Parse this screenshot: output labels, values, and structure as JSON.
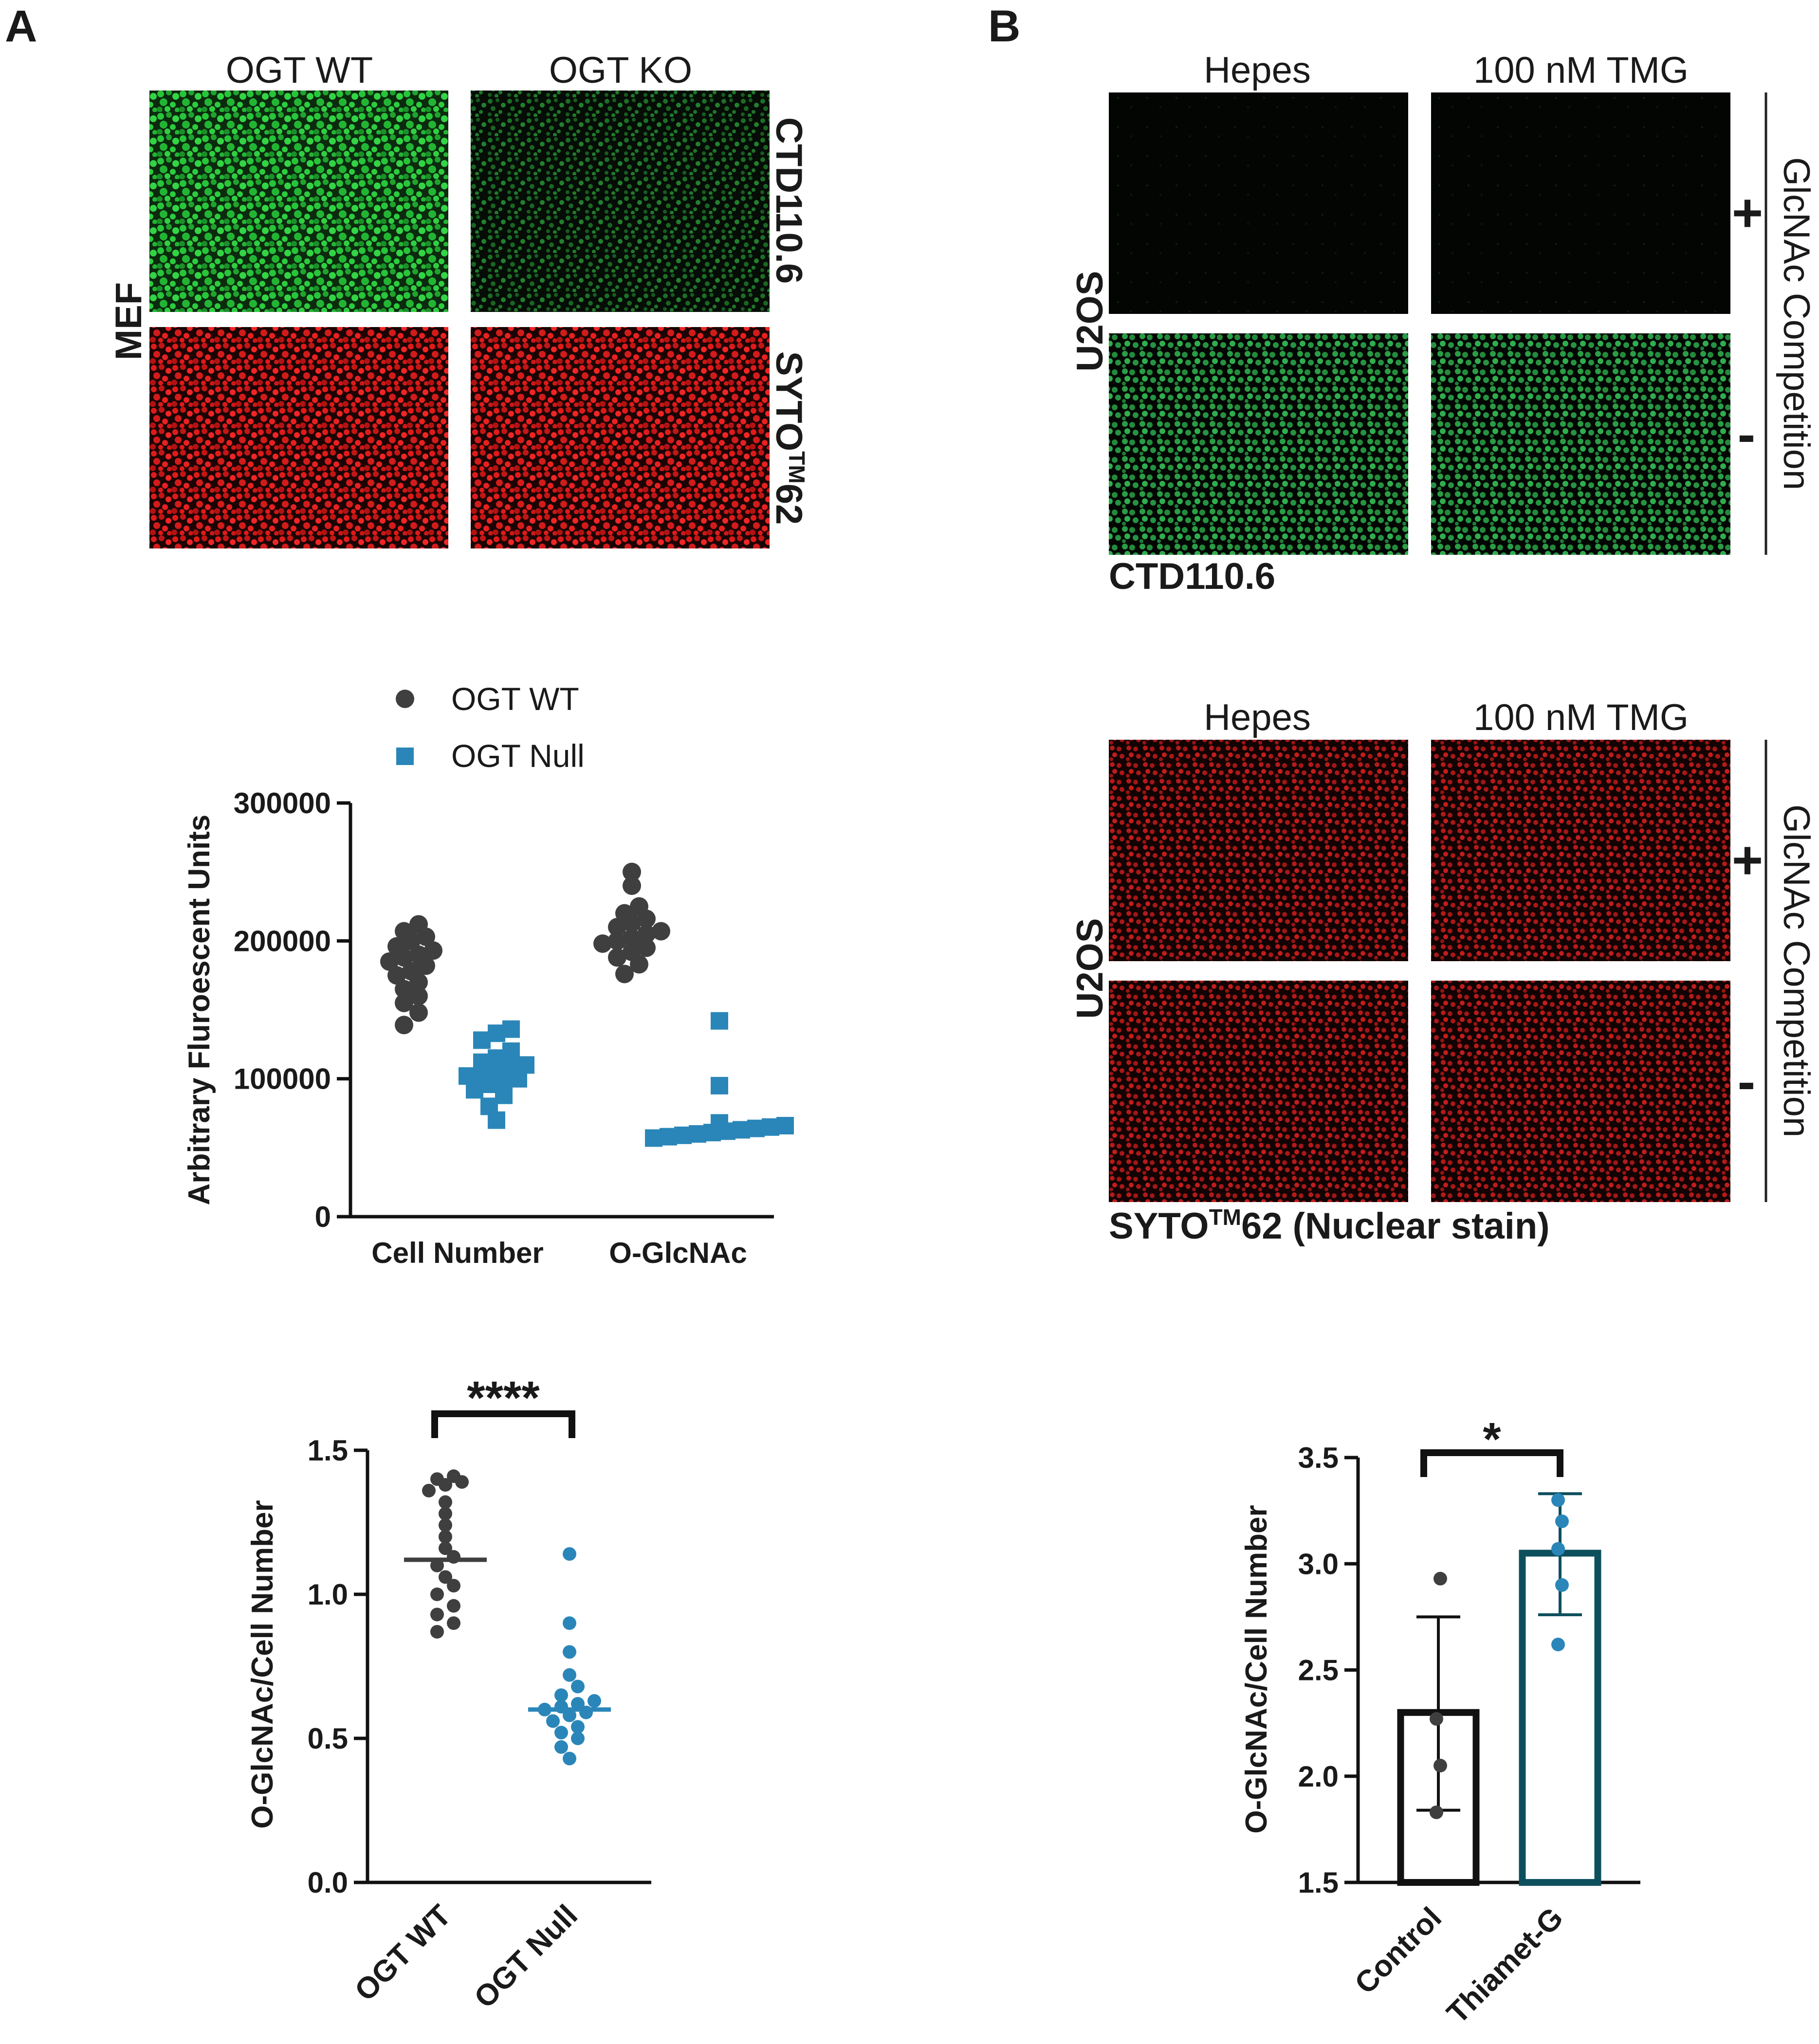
{
  "colors": {
    "wt_dark": "#3f3f3f",
    "null_blue": "#2a86b8",
    "bar_dark_teal": "#0e4f5e",
    "green_cells": "#28c43a",
    "red_cells": "#e01a1a"
  },
  "panelA": {
    "letter": "A",
    "col_headers": [
      "OGT WT",
      "OGT KO"
    ],
    "row_label": "MEF",
    "right_labels": {
      "top": "CTD110.6",
      "bottom_main": "SYTO",
      "bottom_sup": "TM",
      "bottom_tail": "62"
    },
    "legend": [
      {
        "label": "OGT WT",
        "marker": "circle"
      },
      {
        "label": "OGT Null",
        "marker": "square"
      }
    ]
  },
  "panelB": {
    "letter": "B",
    "col_headers": [
      "Hepes",
      "100 nM TMG"
    ],
    "row_label": "U2OS",
    "plus_sign": "+",
    "minus_sign": "-",
    "side_label": "GlcNAc Competition",
    "caption_top": "CTD110.6",
    "caption_bottom_main": "SYTO",
    "caption_bottom_sup": "TM",
    "caption_bottom_tail": "62 (Nuclear stain)"
  },
  "chart_data": [
    {
      "type": "scatter",
      "ylabel": "Arbitrary Fluroescent Units",
      "categories": [
        "Cell Number",
        "O-GlcNAc"
      ],
      "ylim": [
        0,
        300000
      ],
      "yticks": [
        "0",
        "100000",
        "200000",
        "300000"
      ],
      "legend_position": "top",
      "series": [
        {
          "name": "OGT WT",
          "marker": "circle",
          "values": [
            [
              139000,
              148000,
              155000,
              160000,
              165000,
              170000,
              175000,
              178000,
              182000,
              185000,
              188000,
              190000,
              193000,
              196000,
              200000,
              203000,
              207000,
              212000
            ],
            [
              176000,
              183000,
              188000,
              192000,
              195000,
              198000,
              200000,
              202000,
              205000,
              207000,
              210000,
              213000,
              216000,
              220000,
              225000,
              240000,
              250000
            ]
          ]
        },
        {
          "name": "OGT Null",
          "marker": "square",
          "values": [
            [
              70000,
              80000,
              88000,
              92000,
              96000,
              98000,
              100000,
              102000,
              104000,
              106000,
              108000,
              110000,
              112000,
              115000,
              120000,
              128000,
              133000,
              136000
            ],
            [
              57000,
              58000,
              59000,
              60000,
              61000,
              62000,
              63000,
              64000,
              65000,
              66000,
              68000,
              95000,
              142000
            ]
          ]
        }
      ]
    },
    {
      "type": "scatter",
      "ylabel": "O-GlcNAc/Cell Number",
      "categories": [
        "OGT WT",
        "OGT Null"
      ],
      "ylim": [
        0,
        1.5
      ],
      "yticks": [
        "0.0",
        "0.5",
        "1.0",
        "1.5"
      ],
      "significance": "****",
      "medians": [
        1.12,
        0.6
      ],
      "series": [
        {
          "name": "OGT WT",
          "values": [
            0.87,
            0.9,
            0.93,
            0.96,
            1.0,
            1.03,
            1.06,
            1.1,
            1.13,
            1.16,
            1.2,
            1.24,
            1.28,
            1.32,
            1.36,
            1.38,
            1.39,
            1.4,
            1.41
          ]
        },
        {
          "name": "OGT Null",
          "values": [
            0.43,
            0.47,
            0.5,
            0.52,
            0.54,
            0.56,
            0.58,
            0.59,
            0.6,
            0.61,
            0.62,
            0.63,
            0.65,
            0.68,
            0.72,
            0.8,
            0.9,
            1.14
          ]
        }
      ]
    },
    {
      "type": "bar",
      "ylabel": "O-GlcNAc/Cell Number",
      "categories": [
        "Control",
        "Thiamet-G"
      ],
      "values": [
        2.3,
        3.05
      ],
      "error": [
        [
          1.84,
          2.75
        ],
        [
          2.76,
          3.33
        ]
      ],
      "points": [
        [
          1.83,
          2.05,
          2.27,
          2.93
        ],
        [
          2.62,
          2.9,
          3.07,
          3.2,
          3.3
        ]
      ],
      "ylim": [
        1.5,
        3.5
      ],
      "yticks": [
        "1.5",
        "2.0",
        "2.5",
        "3.0",
        "3.5"
      ],
      "significance": "*"
    }
  ]
}
